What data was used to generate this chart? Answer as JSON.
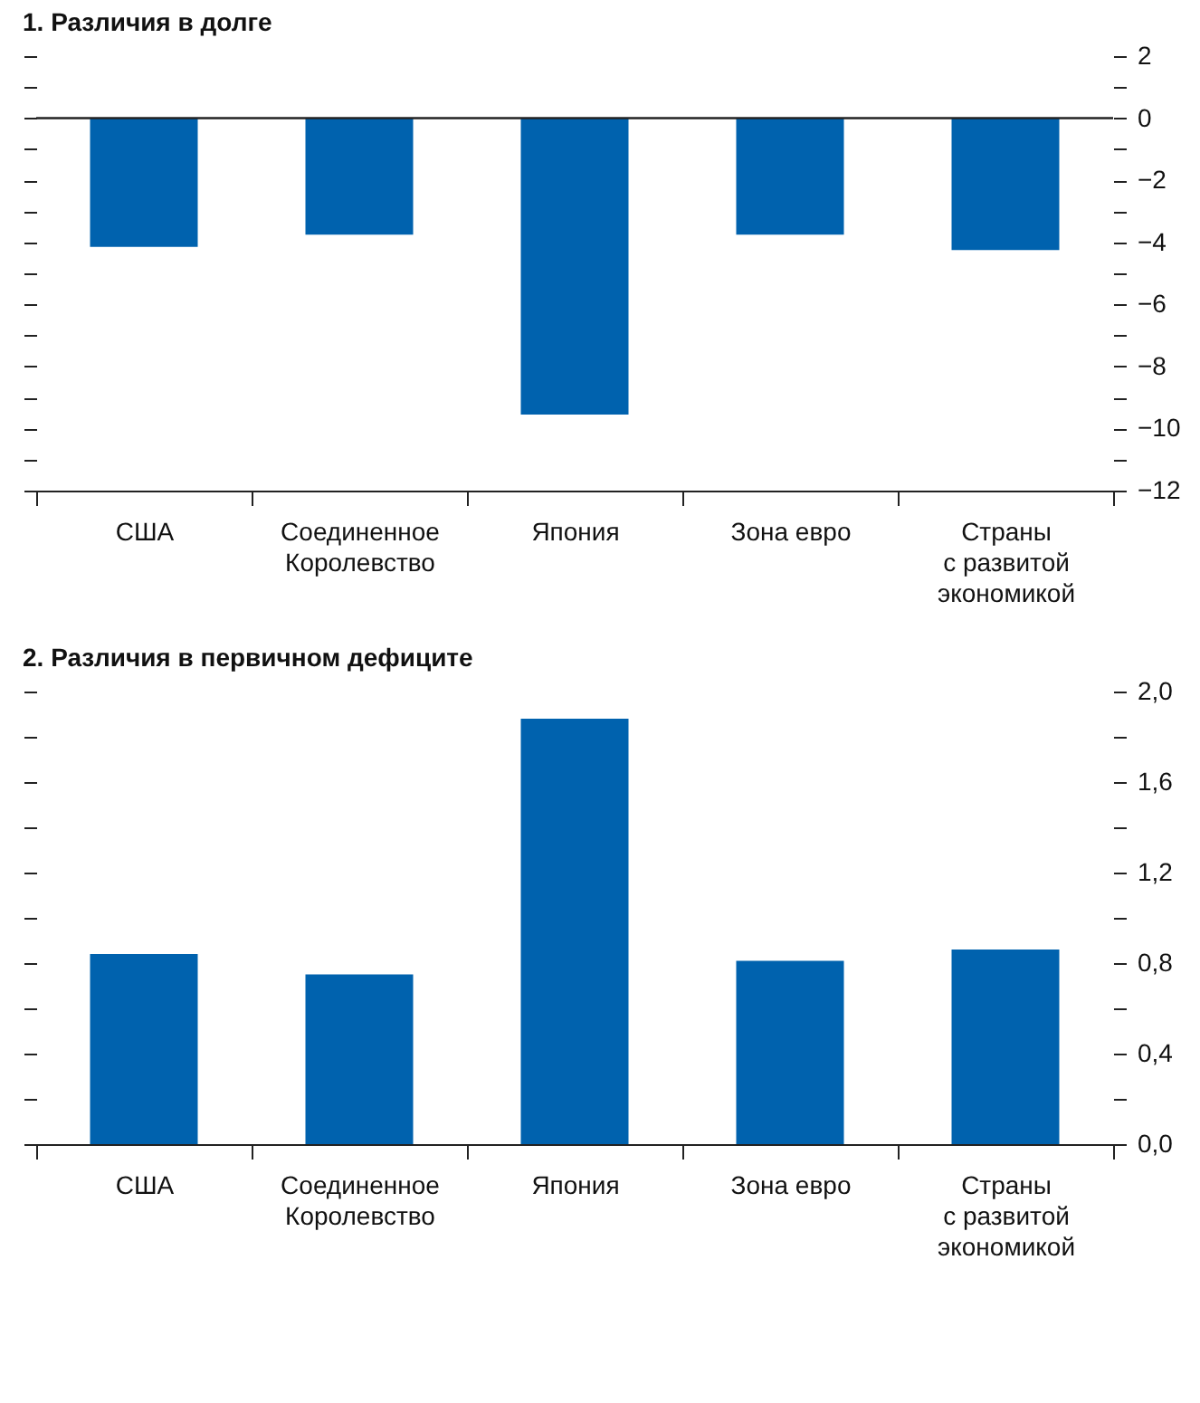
{
  "chart_data": [
    {
      "type": "bar",
      "title": "1. Различия в долге",
      "categories": [
        "США",
        "Соединенное\nКоролевство",
        "Япония",
        "Зона евро",
        "Страны\nс развитой\nэкономикой"
      ],
      "values": [
        -4.15,
        -3.75,
        -9.55,
        -3.75,
        -4.25
      ],
      "color": "#0062ae",
      "ylim": [
        -12,
        2
      ],
      "yticks": [
        {
          "value": -12,
          "label": "−12"
        },
        {
          "value": -11,
          "label": null
        },
        {
          "value": -10,
          "label": "−10"
        },
        {
          "value": -9,
          "label": null
        },
        {
          "value": -8,
          "label": "−8"
        },
        {
          "value": -7,
          "label": null
        },
        {
          "value": -6,
          "label": "−6"
        },
        {
          "value": -5,
          "label": null
        },
        {
          "value": -4,
          "label": "−4"
        },
        {
          "value": -3,
          "label": null
        },
        {
          "value": -2,
          "label": "−2"
        },
        {
          "value": -1,
          "label": null
        },
        0,
        {
          "value": 1,
          "label": null
        },
        2
      ],
      "ref_lines": [
        {
          "axis": "y",
          "value": 0
        }
      ],
      "grid": false
    },
    {
      "type": "bar",
      "title": "2. Различия в первичном дефиците",
      "categories": [
        "США",
        "Соединенное\nКоролевство",
        "Япония",
        "Зона евро",
        "Страны\nс развитой\nэкономикой"
      ],
      "values": [
        0.84,
        0.75,
        1.88,
        0.81,
        0.86
      ],
      "color": "#0062ae",
      "ylim": [
        0,
        2
      ],
      "yticks": [
        {
          "value": 0,
          "label": "0,0"
        },
        {
          "value": 0.2,
          "label": null
        },
        {
          "value": 0.4,
          "label": "0,4"
        },
        {
          "value": 0.6,
          "label": null
        },
        {
          "value": 0.8,
          "label": "0,8"
        },
        {
          "value": 1,
          "label": null
        },
        {
          "value": 1.2,
          "label": "1,2"
        },
        {
          "value": 1.4,
          "label": null
        },
        {
          "value": 1.6,
          "label": "1,6"
        },
        {
          "value": 1.8,
          "label": null
        },
        {
          "value": 2,
          "label": "2,0"
        }
      ],
      "grid": false
    }
  ]
}
